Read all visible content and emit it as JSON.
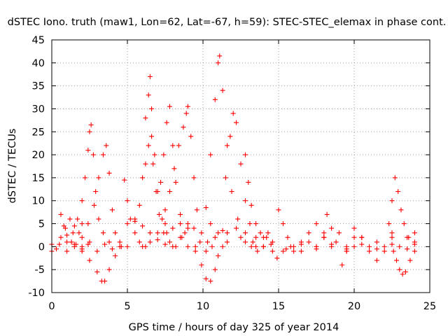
{
  "chart_data": {
    "type": "scatter",
    "title": "dSTEC Iono. truth (maw1, Lon=62, Lat=-67, h=59): STEC-STEC_elemax in phase cont.",
    "xlabel": "GPS time / hours of day 325 of year 2014",
    "ylabel": "dSTEC  / TECUs",
    "xlim": [
      0,
      25
    ],
    "ylim": [
      -10,
      45
    ],
    "xticks": [
      0,
      5,
      10,
      15,
      20,
      25
    ],
    "yticks": [
      -10,
      -5,
      0,
      5,
      10,
      15,
      20,
      25,
      30,
      35,
      40,
      45
    ],
    "grid": true,
    "marker": "plus",
    "color": "#ff0000",
    "series": [
      {
        "points": [
          [
            0.0,
            0.5
          ],
          [
            0.3,
            -0.5
          ],
          [
            0.6,
            2.0
          ],
          [
            0.9,
            4.0
          ],
          [
            1.2,
            6.0
          ],
          [
            1.5,
            4.5
          ],
          [
            1.8,
            3.0
          ],
          [
            2.0,
            5.0
          ]
        ]
      },
      {
        "points": [
          [
            0.6,
            7.0
          ],
          [
            0.8,
            4.5
          ],
          [
            1.0,
            2.5
          ],
          [
            1.3,
            1.0
          ],
          [
            1.6,
            0.5
          ],
          [
            2.0,
            0.0
          ],
          [
            2.4,
            0.5
          ]
        ]
      },
      {
        "points": [
          [
            1.0,
            1.0
          ],
          [
            1.4,
            3.0
          ],
          [
            1.7,
            6.0
          ],
          [
            2.0,
            10.0
          ],
          [
            2.2,
            15.0
          ],
          [
            2.4,
            21.0
          ],
          [
            2.5,
            25.0
          ],
          [
            2.6,
            26.5
          ],
          [
            2.75,
            20.0
          ],
          [
            2.9,
            12.0
          ],
          [
            3.1,
            6.0
          ],
          [
            3.4,
            3.0
          ],
          [
            3.8,
            1.0
          ]
        ]
      },
      {
        "points": [
          [
            1.5,
            0.0
          ],
          [
            2.0,
            2.0
          ],
          [
            2.4,
            5.0
          ],
          [
            2.8,
            9.0
          ],
          [
            3.1,
            15.0
          ],
          [
            3.4,
            20.0
          ],
          [
            3.6,
            22.0
          ],
          [
            3.8,
            16.0
          ],
          [
            4.0,
            8.0
          ],
          [
            4.2,
            3.0
          ],
          [
            4.5,
            0.0
          ]
        ]
      },
      {
        "points": [
          [
            2.0,
            -1.0
          ],
          [
            2.5,
            -3.0
          ],
          [
            3.0,
            -5.5
          ],
          [
            3.3,
            -7.5
          ],
          [
            3.5,
            -7.5
          ],
          [
            3.8,
            -5.0
          ],
          [
            4.2,
            -2.0
          ],
          [
            4.6,
            0.0
          ]
        ]
      },
      {
        "points": [
          [
            0.0,
            -1.0
          ],
          [
            0.5,
            0.5
          ],
          [
            1.0,
            -1.0
          ],
          [
            1.5,
            0.5
          ],
          [
            2.0,
            -0.5
          ],
          [
            2.5,
            1.0
          ],
          [
            3.0,
            -1.0
          ],
          [
            3.5,
            0.5
          ],
          [
            4.0,
            -0.5
          ],
          [
            4.5,
            1.0
          ],
          [
            5.0,
            0.0
          ]
        ]
      },
      {
        "points": [
          [
            4.8,
            14.5
          ],
          [
            5.0,
            10.0
          ],
          [
            5.2,
            6.0
          ],
          [
            5.5,
            3.0
          ],
          [
            5.8,
            1.0
          ],
          [
            6.2,
            0.0
          ]
        ]
      },
      {
        "points": [
          [
            5.5,
            6.0
          ],
          [
            5.8,
            9.0
          ],
          [
            6.0,
            15.0
          ],
          [
            6.2,
            18.0
          ],
          [
            6.4,
            22.0
          ],
          [
            6.6,
            24.0
          ],
          [
            6.7,
            18.0
          ],
          [
            6.9,
            12.0
          ],
          [
            7.1,
            7.0
          ],
          [
            7.4,
            3.0
          ],
          [
            7.8,
            1.0
          ]
        ]
      },
      {
        "points": [
          [
            6.2,
            28.0
          ],
          [
            6.4,
            33.0
          ],
          [
            6.5,
            37.0
          ],
          [
            6.6,
            30.0
          ],
          [
            6.8,
            20.0
          ],
          [
            7.0,
            12.0
          ],
          [
            7.3,
            6.0
          ],
          [
            7.6,
            3.0
          ]
        ]
      },
      {
        "points": [
          [
            7.2,
            14.0
          ],
          [
            7.4,
            20.0
          ],
          [
            7.6,
            27.0
          ],
          [
            7.8,
            30.5
          ],
          [
            8.0,
            22.0
          ],
          [
            8.2,
            14.0
          ],
          [
            8.5,
            7.0
          ],
          [
            8.8,
            3.0
          ]
        ]
      },
      {
        "points": [
          [
            7.5,
            8.0
          ],
          [
            7.8,
            12.0
          ],
          [
            8.1,
            17.0
          ],
          [
            8.4,
            22.0
          ],
          [
            8.7,
            26.0
          ],
          [
            8.9,
            29.0
          ],
          [
            9.0,
            30.5
          ],
          [
            9.2,
            24.0
          ],
          [
            9.4,
            15.0
          ],
          [
            9.6,
            8.0
          ],
          [
            9.9,
            3.0
          ],
          [
            10.3,
            1.0
          ]
        ]
      },
      {
        "points": [
          [
            5.0,
            5.0
          ],
          [
            5.5,
            5.5
          ],
          [
            6.0,
            4.5
          ],
          [
            6.5,
            3.0
          ],
          [
            7.0,
            1.5
          ],
          [
            7.5,
            0.5
          ],
          [
            8.0,
            0.0
          ]
        ]
      },
      {
        "points": [
          [
            6.0,
            0.0
          ],
          [
            6.5,
            1.0
          ],
          [
            7.0,
            3.0
          ],
          [
            7.5,
            5.0
          ],
          [
            8.0,
            4.0
          ],
          [
            8.5,
            2.0
          ],
          [
            9.0,
            0.0
          ],
          [
            9.5,
            -1.0
          ]
        ]
      },
      {
        "points": [
          [
            8.5,
            5.0
          ],
          [
            9.0,
            4.0
          ],
          [
            9.5,
            0.0
          ],
          [
            9.9,
            -4.0
          ],
          [
            10.2,
            -7.0
          ],
          [
            10.5,
            -7.5
          ],
          [
            10.8,
            -5.0
          ],
          [
            11.0,
            -2.0
          ],
          [
            11.3,
            0.0
          ],
          [
            11.6,
            1.0
          ]
        ]
      },
      {
        "points": [
          [
            8.2,
            0.0
          ],
          [
            8.6,
            2.0
          ],
          [
            9.0,
            5.0
          ],
          [
            9.4,
            4.0
          ],
          [
            9.8,
            1.0
          ],
          [
            10.2,
            -1.0
          ],
          [
            10.6,
            0.0
          ]
        ]
      },
      {
        "points": [
          [
            10.2,
            8.5
          ],
          [
            10.5,
            5.0
          ],
          [
            10.8,
            2.0
          ],
          [
            11.0,
            3.0
          ],
          [
            11.3,
            3.5
          ],
          [
            11.6,
            3.0
          ]
        ]
      },
      {
        "points": [
          [
            10.5,
            20.0
          ],
          [
            10.8,
            32.0
          ],
          [
            11.0,
            40.0
          ],
          [
            11.1,
            41.5
          ],
          [
            11.3,
            34.0
          ],
          [
            11.6,
            22.0
          ],
          [
            11.9,
            12.0
          ],
          [
            12.3,
            6.0
          ],
          [
            12.8,
            3.0
          ],
          [
            13.3,
            1.0
          ],
          [
            14.0,
            0.0
          ]
        ]
      },
      {
        "points": [
          [
            11.5,
            15.0
          ],
          [
            11.8,
            24.0
          ],
          [
            12.0,
            29.0
          ],
          [
            12.2,
            27.0
          ],
          [
            12.5,
            18.0
          ],
          [
            12.8,
            10.0
          ],
          [
            13.1,
            5.0
          ],
          [
            13.5,
            2.0
          ],
          [
            14.0,
            0.0
          ]
        ]
      },
      {
        "points": [
          [
            12.2,
            4.0
          ],
          [
            12.5,
            2.0
          ],
          [
            12.8,
            1.0
          ],
          [
            13.2,
            0.0
          ],
          [
            13.6,
            -1.0
          ],
          [
            14.0,
            0.0
          ]
        ]
      },
      {
        "points": [
          [
            12.8,
            20.0
          ],
          [
            13.0,
            14.0
          ],
          [
            13.2,
            9.0
          ],
          [
            13.5,
            5.0
          ],
          [
            13.8,
            3.0
          ],
          [
            14.2,
            2.0
          ],
          [
            14.6,
            1.0
          ]
        ]
      },
      {
        "points": [
          [
            13.5,
            0.0
          ],
          [
            14.0,
            2.0
          ],
          [
            14.3,
            3.0
          ],
          [
            14.6,
            -1.0
          ],
          [
            14.9,
            -2.5
          ],
          [
            15.3,
            -1.0
          ],
          [
            15.8,
            0.0
          ]
        ]
      },
      {
        "points": [
          [
            15.0,
            8.0
          ],
          [
            15.3,
            5.0
          ],
          [
            15.6,
            2.0
          ],
          [
            16.0,
            0.0
          ],
          [
            16.5,
            -1.0
          ],
          [
            17.0,
            1.0
          ],
          [
            17.5,
            0.0
          ],
          [
            18.0,
            2.0
          ]
        ]
      },
      {
        "points": [
          [
            16.0,
            -1.0
          ],
          [
            16.5,
            1.0
          ],
          [
            17.0,
            3.0
          ],
          [
            17.5,
            5.0
          ],
          [
            18.0,
            2.0
          ],
          [
            18.5,
            0.0
          ],
          [
            19.0,
            3.0
          ],
          [
            19.5,
            -1.0
          ],
          [
            20.0,
            0.0
          ]
        ]
      },
      {
        "points": [
          [
            17.5,
            0.0
          ],
          [
            18.0,
            3.0
          ],
          [
            18.2,
            7.0
          ],
          [
            18.5,
            4.0
          ],
          [
            18.8,
            1.0
          ],
          [
            19.2,
            -4.0
          ],
          [
            19.5,
            -1.0
          ],
          [
            20.0,
            2.0
          ]
        ]
      },
      {
        "points": [
          [
            19.5,
            0.0
          ],
          [
            20.0,
            4.0
          ],
          [
            20.5,
            2.0
          ],
          [
            21.0,
            -1.0
          ],
          [
            21.5,
            -3.0
          ],
          [
            22.0,
            0.0
          ],
          [
            22.5,
            2.0
          ]
        ]
      },
      {
        "points": [
          [
            20.5,
            2.0
          ],
          [
            21.0,
            0.0
          ],
          [
            21.5,
            1.0
          ],
          [
            22.0,
            -1.0
          ],
          [
            22.5,
            3.0
          ],
          [
            23.0,
            0.0
          ],
          [
            23.5,
            2.0
          ],
          [
            24.0,
            3.0
          ]
        ]
      },
      {
        "points": [
          [
            22.3,
            5.0
          ],
          [
            22.5,
            10.0
          ],
          [
            22.7,
            15.0
          ],
          [
            22.9,
            12.0
          ],
          [
            23.1,
            8.0
          ],
          [
            23.3,
            5.0
          ],
          [
            23.6,
            2.0
          ],
          [
            24.0,
            1.0
          ]
        ]
      },
      {
        "points": [
          [
            22.6,
            -1.0
          ],
          [
            22.8,
            -3.0
          ],
          [
            23.0,
            -5.0
          ],
          [
            23.2,
            -6.0
          ],
          [
            23.4,
            -5.5
          ],
          [
            23.7,
            -3.0
          ],
          [
            24.0,
            -1.0
          ]
        ]
      },
      {
        "points": [
          [
            14.5,
            0.5
          ],
          [
            15.5,
            -0.5
          ],
          [
            16.5,
            0.5
          ],
          [
            17.5,
            -0.5
          ],
          [
            18.5,
            0.5
          ],
          [
            19.5,
            -0.5
          ],
          [
            20.5,
            0.5
          ],
          [
            21.5,
            -0.5
          ],
          [
            22.5,
            0.5
          ],
          [
            23.5,
            -0.5
          ],
          [
            24.0,
            0.5
          ]
        ]
      }
    ]
  }
}
